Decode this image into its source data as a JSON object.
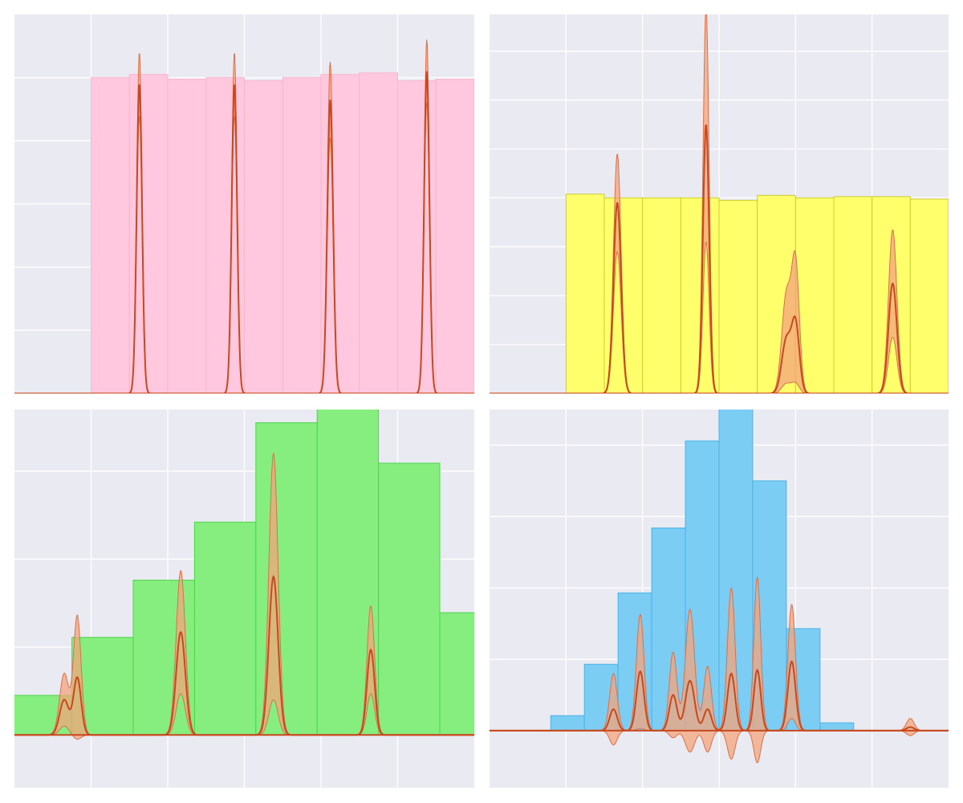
{
  "chart_data": [
    {
      "type": "bar",
      "overlay": "kde",
      "colors": {
        "fill": "#ffc8de",
        "edge": "#f7b6cc",
        "band": "#f4a47c",
        "line": "#c8491e"
      },
      "xlim": [
        -1,
        5
      ],
      "ylim": [
        0,
        1.2
      ],
      "xgrid": [
        0,
        1,
        2,
        3,
        4
      ],
      "ygrid": [
        0.2,
        0.4,
        0.6,
        0.8,
        1.0
      ],
      "bins": {
        "start": 0,
        "width": 0.5,
        "values": [
          1.0,
          1.01,
          0.995,
          1.0,
          0.99,
          1.0,
          1.01,
          1.015,
          0.99,
          0.995
        ]
      },
      "density": {
        "range": [
          -1,
          5
        ],
        "peaks": [
          {
            "x": 0.63,
            "h": 0.98,
            "w": 0.035,
            "band": 0.1
          },
          {
            "x": 1.87,
            "h": 0.98,
            "w": 0.035,
            "band": 0.1
          },
          {
            "x": 3.12,
            "h": 0.93,
            "w": 0.038,
            "band": 0.12
          },
          {
            "x": 4.38,
            "h": 1.02,
            "w": 0.035,
            "band": 0.1
          }
        ]
      }
    },
    {
      "type": "bar",
      "overlay": "kde",
      "colors": {
        "fill": "#ffff6b",
        "edge": "#cccc33",
        "band": "#f4a47c",
        "line": "#c8491e"
      },
      "xlim": [
        -1,
        5
      ],
      "ylim": [
        0,
        1.55
      ],
      "xgrid": [
        0,
        1,
        2,
        3,
        4
      ],
      "ygrid": [
        0.2,
        0.4,
        0.6,
        0.8,
        1.0,
        1.2,
        1.4
      ],
      "bins": {
        "start": 0,
        "width": 0.5,
        "values": [
          0.815,
          0.8,
          0.8,
          0.8,
          0.79,
          0.81,
          0.8,
          0.805,
          0.805,
          0.795
        ]
      },
      "density": {
        "range": [
          -1,
          5
        ],
        "peaks": [
          {
            "x": 0.67,
            "h": 0.78,
            "w": 0.05,
            "band": 0.2
          },
          {
            "x": 1.83,
            "h": 1.1,
            "w": 0.04,
            "band": 0.48
          },
          {
            "x": 2.88,
            "h": 0.22,
            "w": 0.06,
            "band": 0.18
          },
          {
            "x": 3.0,
            "h": 0.28,
            "w": 0.05,
            "band": 0.24
          },
          {
            "x": 4.27,
            "h": 0.45,
            "w": 0.055,
            "band": 0.22
          }
        ]
      }
    },
    {
      "type": "bar",
      "overlay": "kde",
      "colors": {
        "fill": "#85ee7f",
        "edge": "#4fd34b",
        "band": "#f4a47c",
        "line": "#c8491e"
      },
      "xlim": [
        -1,
        5
      ],
      "ylim": [
        -0.06,
        0.37
      ],
      "xgrid": [
        0,
        1,
        2,
        3,
        4
      ],
      "ygrid": [
        0.0,
        0.1,
        0.2,
        0.3
      ],
      "bins": {
        "start": -1.05,
        "width": 0.8,
        "values": [
          0.045,
          0.111,
          0.176,
          0.242,
          0.355,
          0.417,
          0.309,
          0.139,
          0.011
        ]
      },
      "density": {
        "range": [
          -1,
          5
        ],
        "peaks": [
          {
            "x": -0.35,
            "h": 0.04,
            "w": 0.06,
            "band": 0.03
          },
          {
            "x": -0.18,
            "h": 0.065,
            "w": 0.05,
            "band": 0.07
          },
          {
            "x": 1.17,
            "h": 0.117,
            "w": 0.06,
            "band": 0.07
          },
          {
            "x": 2.38,
            "h": 0.18,
            "w": 0.06,
            "band": 0.14
          },
          {
            "x": 3.65,
            "h": 0.097,
            "w": 0.05,
            "band": 0.05
          }
        ]
      }
    },
    {
      "type": "bar",
      "overlay": "kde",
      "colors": {
        "fill": "#7ccdf4",
        "edge": "#4db2e6",
        "band": "#f4a47c",
        "line": "#c8491e"
      },
      "xlim": [
        -1,
        5
      ],
      "ylim": [
        -0.08,
        0.45
      ],
      "xgrid": [
        0,
        1,
        2,
        3,
        4
      ],
      "ygrid": [
        0.0,
        0.1,
        0.2,
        0.3,
        0.4
      ],
      "bins": {
        "start": -0.2,
        "width": 0.44,
        "values": [
          0.021,
          0.093,
          0.193,
          0.284,
          0.406,
          0.464,
          0.35,
          0.143,
          0.011
        ]
      },
      "density": {
        "range": [
          -1,
          5
        ],
        "peaks": [
          {
            "x": 0.62,
            "h": 0.03,
            "w": 0.05,
            "band": 0.05
          },
          {
            "x": 0.97,
            "h": 0.083,
            "w": 0.05,
            "band": 0.08
          },
          {
            "x": 1.4,
            "h": 0.05,
            "w": 0.05,
            "band": 0.06
          },
          {
            "x": 1.62,
            "h": 0.07,
            "w": 0.06,
            "band": 0.1
          },
          {
            "x": 1.85,
            "h": 0.03,
            "w": 0.05,
            "band": 0.06
          },
          {
            "x": 2.16,
            "h": 0.08,
            "w": 0.05,
            "band": 0.12
          },
          {
            "x": 2.5,
            "h": 0.085,
            "w": 0.045,
            "band": 0.13
          },
          {
            "x": 2.95,
            "h": 0.097,
            "w": 0.05,
            "band": 0.08
          },
          {
            "x": 4.5,
            "h": 0.005,
            "w": 0.05,
            "band": 0.012
          }
        ]
      }
    }
  ]
}
